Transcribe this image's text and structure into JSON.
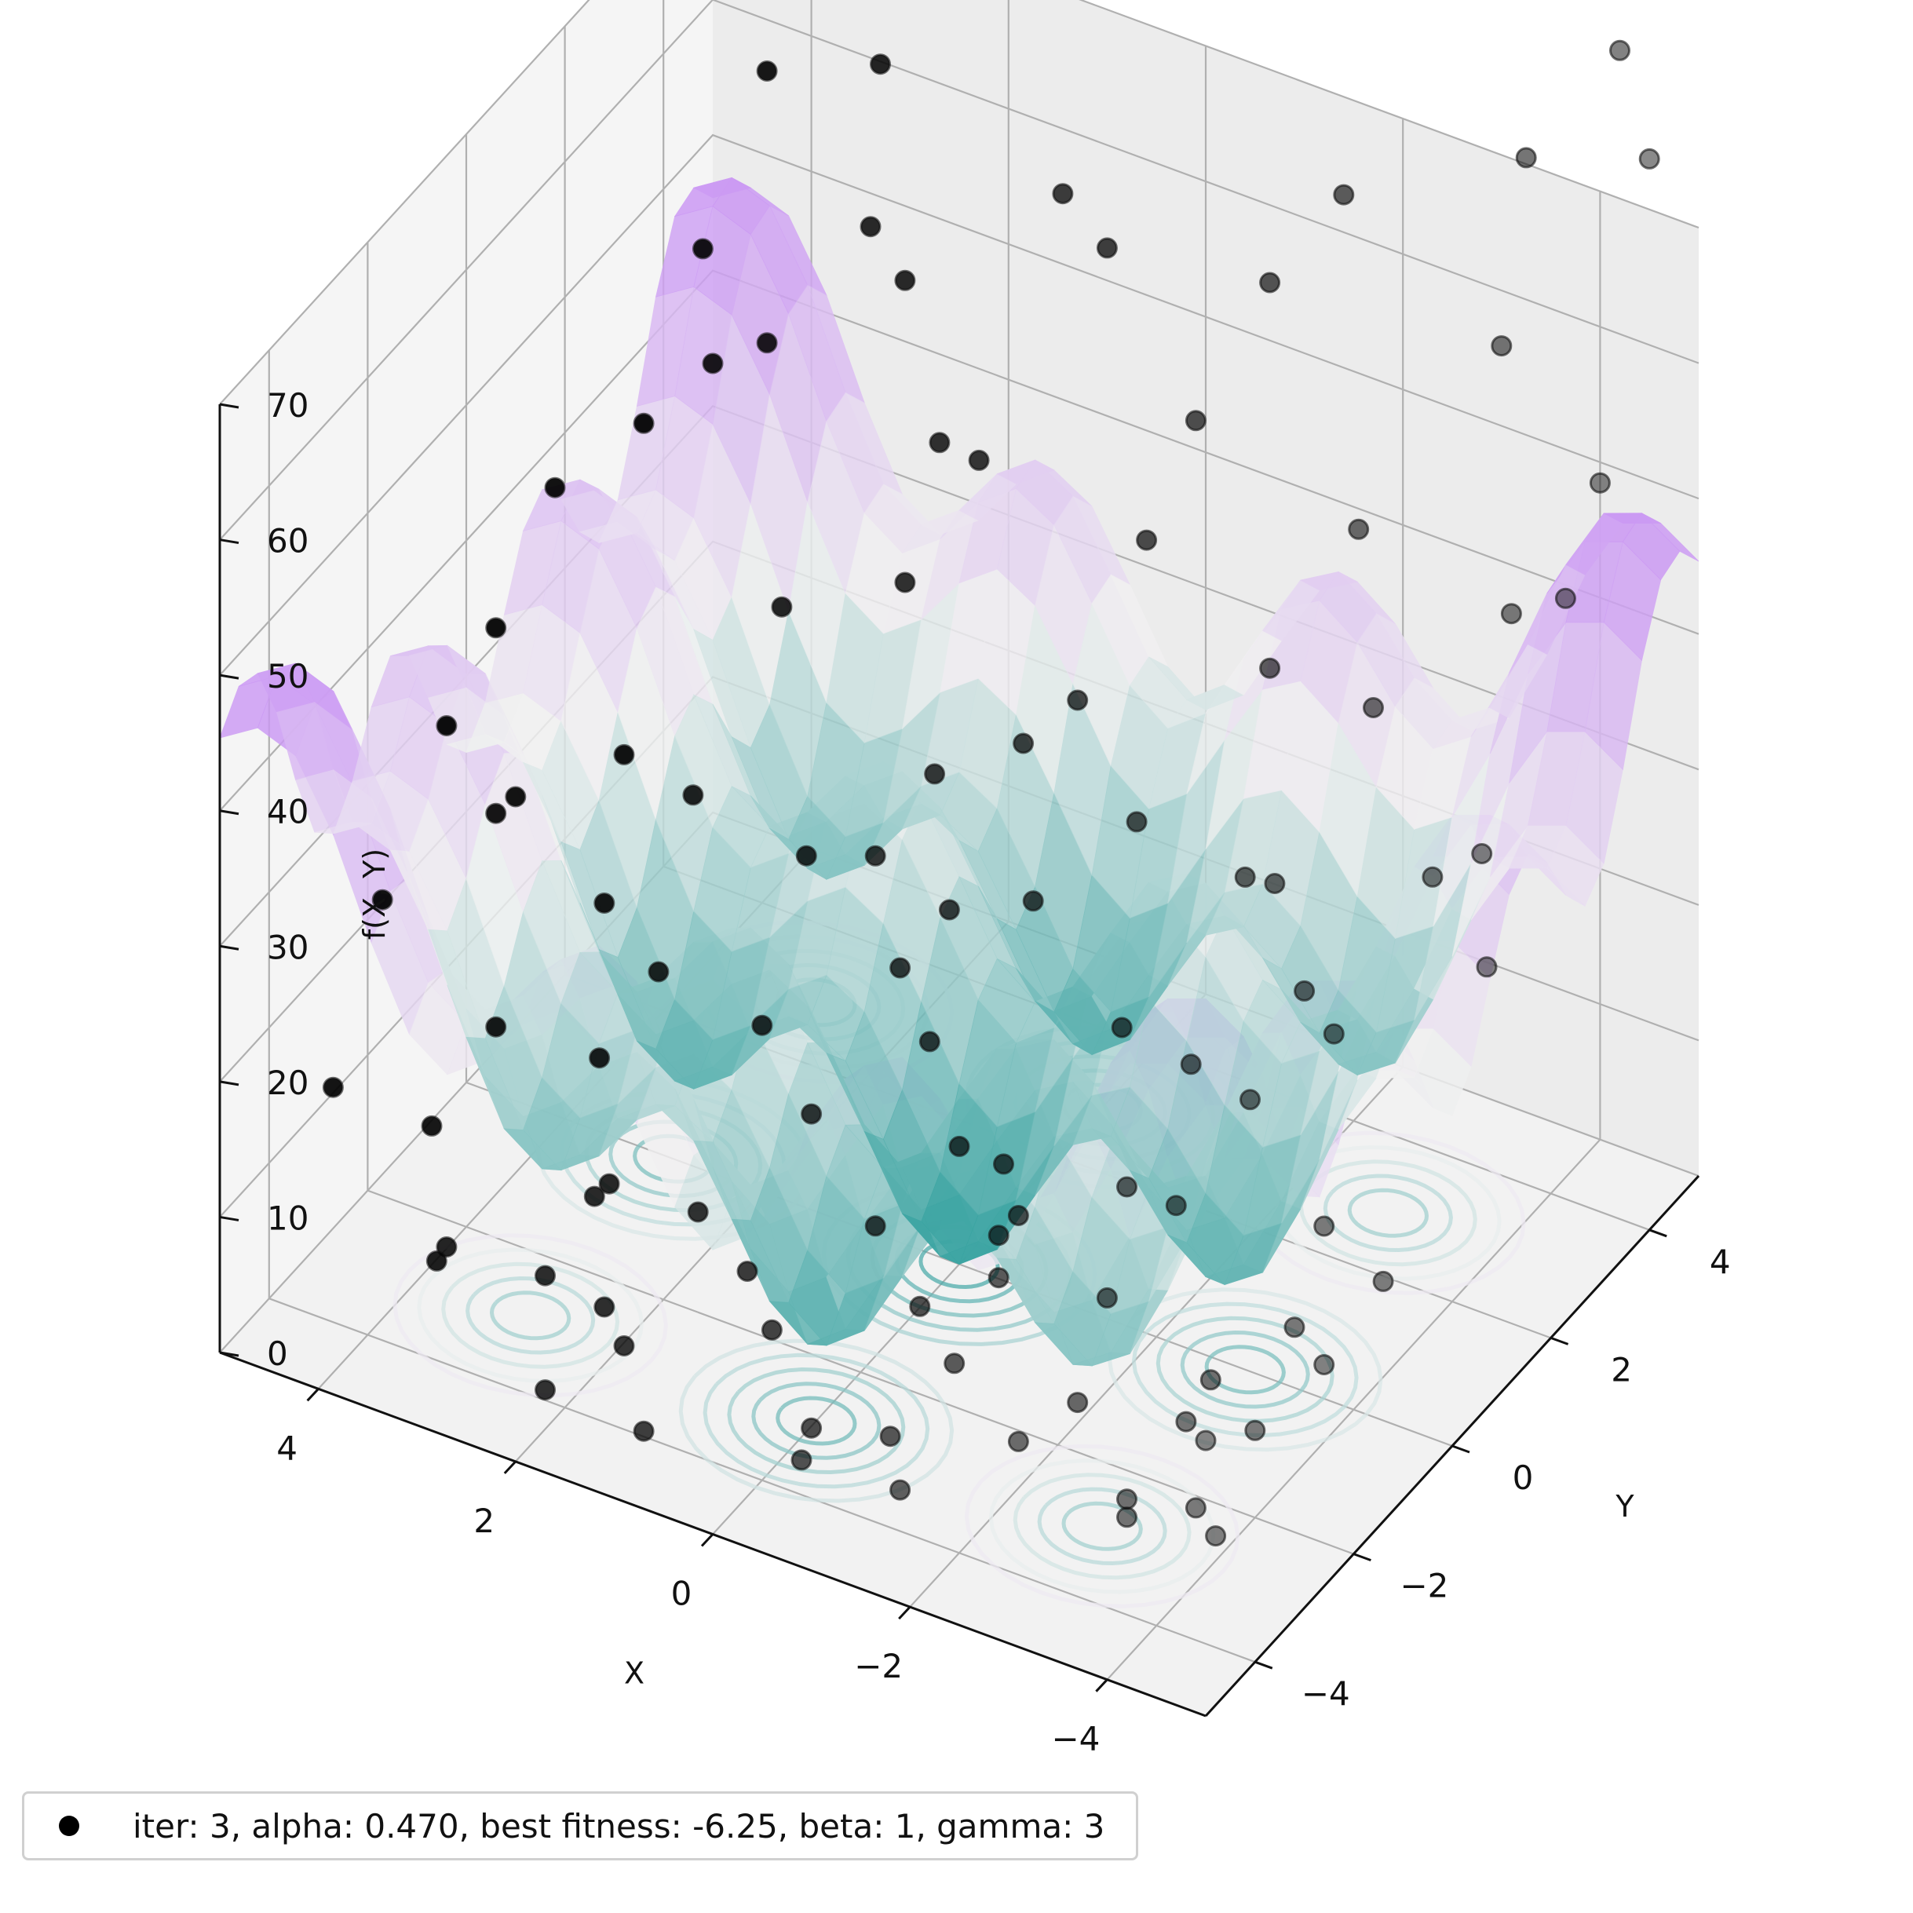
{
  "chart_data": {
    "type": "scatter",
    "subtype": "3d-surface-with-contours",
    "title": "",
    "xlabel": "X",
    "ylabel": "Y",
    "zlabel": "f(X, Y)",
    "xlim": [
      -5,
      5
    ],
    "ylim": [
      -5,
      5
    ],
    "zlim": [
      0,
      70
    ],
    "xticks": [
      "−4",
      "−2",
      "0",
      "2",
      "4"
    ],
    "xtick_values": [
      -4,
      -2,
      0,
      2,
      4
    ],
    "yticks": [
      "−4",
      "−2",
      "0",
      "2",
      "4"
    ],
    "ytick_values": [
      -4,
      -2,
      0,
      2,
      4
    ],
    "zticks": [
      "0",
      "10",
      "20",
      "30",
      "40",
      "50",
      "60",
      "70"
    ],
    "ztick_values": [
      0,
      10,
      20,
      30,
      40,
      50,
      60,
      70
    ],
    "grid": true,
    "surface_colormap": [
      "#2a9d9b",
      "#f1f1f1",
      "#a43cf7"
    ],
    "marker_color": "#000000",
    "legend": {
      "position": "bottom-left",
      "marker": "dot"
    },
    "series": [
      {
        "name": "iter: 3, alpha: 0.470, best fitness: -6.25, beta: 1, gamma: 3",
        "points": [
          [
            -4.4,
            -3.6,
            6.1
          ],
          [
            -4.0,
            -3.2,
            5.5
          ],
          [
            -3.6,
            -2.6,
            8.4
          ],
          [
            -3.2,
            -3.0,
            3.2
          ],
          [
            -4.6,
            -1.8,
            12.1
          ],
          [
            -3.9,
            -1.0,
            9.8
          ],
          [
            -3.3,
            -1.5,
            6.3
          ],
          [
            -4.2,
            0.2,
            9.2
          ],
          [
            -2.6,
            -0.8,
            14.5
          ],
          [
            -2.1,
            0.5,
            18.4
          ],
          [
            -1.5,
            -2.2,
            11.8
          ],
          [
            -1.0,
            -1.2,
            9.6
          ],
          [
            -0.6,
            -0.3,
            10.2
          ],
          [
            -2.8,
            1.4,
            22.1
          ],
          [
            -1.9,
            2.0,
            25.7
          ],
          [
            -0.9,
            1.8,
            27.9
          ],
          [
            0.1,
            2.6,
            31.0
          ],
          [
            0.7,
            1.2,
            19.5
          ],
          [
            1.3,
            -0.4,
            9.2
          ],
          [
            1.8,
            -1.7,
            5.8
          ],
          [
            2.2,
            -2.8,
            2.1
          ],
          [
            2.8,
            -1.5,
            4.4
          ],
          [
            3.4,
            -0.5,
            8.1
          ],
          [
            3.9,
            0.6,
            13.8
          ],
          [
            4.3,
            1.8,
            18.9
          ],
          [
            4.7,
            3.0,
            37.5
          ],
          [
            3.6,
            3.3,
            45.2
          ],
          [
            2.6,
            4.1,
            49.3
          ],
          [
            1.6,
            3.6,
            40.7
          ],
          [
            0.7,
            4.4,
            55.6
          ],
          [
            -0.4,
            4.0,
            47.4
          ],
          [
            -1.6,
            4.6,
            64.9
          ],
          [
            -2.5,
            3.1,
            48.6
          ],
          [
            -3.6,
            3.8,
            62.3
          ],
          [
            -4.7,
            2.9,
            50.2
          ],
          [
            -0.2,
            -3.4,
            2.0
          ],
          [
            0.6,
            -2.6,
            3.9
          ],
          [
            1.5,
            -3.8,
            5.1
          ],
          [
            2.5,
            -3.4,
            6.0
          ],
          [
            3.1,
            -4.2,
            9.7
          ],
          [
            3.9,
            -2.9,
            11.3
          ],
          [
            4.4,
            -3.9,
            16.8
          ],
          [
            4.8,
            -2.1,
            22.4
          ],
          [
            -0.6,
            -4.4,
            4.7
          ],
          [
            -1.8,
            -4.8,
            7.3
          ],
          [
            -2.7,
            -4.2,
            10.9
          ],
          [
            -4.8,
            -4.6,
            18.2
          ],
          [
            -4.9,
            0.9,
            31.5
          ],
          [
            0.0,
            0.0,
            8.7
          ],
          [
            1.0,
            0.8,
            16.0
          ],
          [
            2.1,
            0.2,
            11.2
          ],
          [
            -1.2,
            0.9,
            17.1
          ],
          [
            3.0,
            2.4,
            30.9
          ],
          [
            2.0,
            2.9,
            33.4
          ],
          [
            -3.0,
            -0.1,
            20.6
          ],
          [
            4.2,
            -1.0,
            26.0
          ],
          [
            4.8,
            0.2,
            33.3
          ],
          [
            -0.1,
            1.3,
            21.9
          ],
          [
            1.2,
            1.9,
            25.4
          ],
          [
            -2.3,
            1.8,
            27.1
          ],
          [
            0.3,
            -1.1,
            6.4
          ],
          [
            -1.4,
            -2.9,
            8.0
          ],
          [
            2.9,
            -0.3,
            15.0
          ],
          [
            -3.8,
            2.0,
            30.8
          ],
          [
            4.5,
            4.5,
            68.0
          ],
          [
            3.2,
            4.8,
            74.0
          ],
          [
            -4.3,
            4.8,
            82.0
          ],
          [
            -2.0,
            4.9,
            88.0
          ],
          [
            0.9,
            4.7,
            85.5
          ],
          [
            2.4,
            4.6,
            92.0
          ],
          [
            4.9,
            3.9,
            95.0
          ],
          [
            -4.9,
            4.2,
            78.0
          ],
          [
            -3.1,
            4.4,
            96.0
          ],
          [
            -0.8,
            4.8,
            101.0
          ],
          [
            1.7,
            4.9,
            79.0
          ],
          [
            4.0,
            4.1,
            61.0
          ],
          [
            -4.1,
            -0.8,
            17.0
          ],
          [
            -3.5,
            0.6,
            24.0
          ],
          [
            -4.5,
            1.6,
            36.0
          ],
          [
            -4.8,
            3.4,
            57.0
          ],
          [
            2.7,
            3.6,
            55.0
          ],
          [
            3.7,
            2.4,
            47.0
          ],
          [
            4.6,
            1.0,
            41.0
          ],
          [
            4.9,
            -0.6,
            29.0
          ],
          [
            1.4,
            1.1,
            22.0
          ],
          [
            0.5,
            0.4,
            13.5
          ],
          [
            -0.5,
            -1.8,
            5.4
          ],
          [
            -2.2,
            -1.4,
            9.0
          ],
          [
            -1.1,
            -3.6,
            4.6
          ],
          [
            0.9,
            -4.6,
            3.6
          ],
          [
            2.0,
            -4.4,
            2.9
          ],
          [
            3.5,
            -3.6,
            5.2
          ],
          [
            -3.4,
            -3.4,
            4.0
          ],
          [
            -2.4,
            -2.4,
            5.8
          ],
          [
            -4.1,
            -2.2,
            7.5
          ],
          [
            3.3,
            1.2,
            21.0
          ],
          [
            2.3,
            1.5,
            18.0
          ],
          [
            -1.7,
            2.9,
            37.0
          ],
          [
            -0.3,
            3.2,
            41.5
          ],
          [
            0.4,
            2.1,
            29.0
          ],
          [
            1.9,
            3.4,
            42.0
          ],
          [
            4.1,
            3.0,
            52.0
          ],
          [
            -2.9,
            2.6,
            38.5
          ],
          [
            -4.0,
            3.2,
            46.0
          ],
          [
            3.8,
            -1.8,
            14.5
          ],
          [
            1.1,
            -2.1,
            4.9
          ],
          [
            -0.9,
            -0.6,
            8.4
          ],
          [
            2.6,
            -2.2,
            6.8
          ],
          [
            4.4,
            -0.2,
            23.5
          ],
          [
            -1.9,
            -0.4,
            12.4
          ],
          [
            3.0,
            4.4,
            63.0
          ],
          [
            1.0,
            4.1,
            60.0
          ],
          [
            -1.0,
            4.3,
            58.0
          ],
          [
            -3.3,
            4.9,
            71.0
          ]
        ]
      }
    ]
  }
}
